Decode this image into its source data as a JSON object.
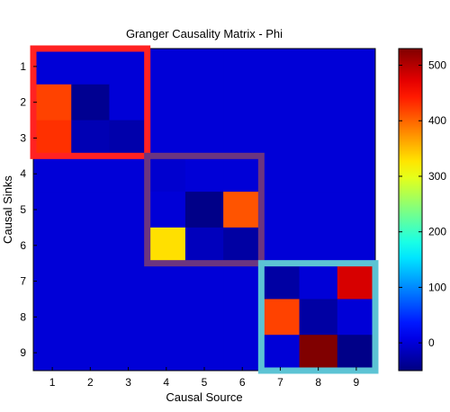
{
  "chart_data": {
    "type": "heatmap",
    "title": "Granger Causality Matrix - Phi",
    "xlabel": "Causal Source",
    "ylabel": "Causal Sinks",
    "x_categories": [
      "1",
      "2",
      "3",
      "4",
      "5",
      "6",
      "7",
      "8",
      "9"
    ],
    "y_categories": [
      "1",
      "2",
      "3",
      "4",
      "5",
      "6",
      "7",
      "8",
      "9"
    ],
    "values": [
      [
        0,
        0,
        0,
        0,
        0,
        0,
        0,
        0,
        0
      ],
      [
        420,
        -40,
        0,
        0,
        0,
        0,
        0,
        0,
        0
      ],
      [
        430,
        -20,
        -25,
        0,
        0,
        0,
        0,
        0,
        0
      ],
      [
        0,
        0,
        0,
        -5,
        0,
        0,
        0,
        0,
        0
      ],
      [
        0,
        0,
        0,
        0,
        -45,
        410,
        0,
        0,
        0
      ],
      [
        0,
        0,
        0,
        330,
        -15,
        -30,
        0,
        0,
        0
      ],
      [
        0,
        0,
        0,
        0,
        0,
        0,
        -30,
        0,
        480
      ],
      [
        0,
        0,
        0,
        0,
        0,
        0,
        420,
        -30,
        0
      ],
      [
        0,
        0,
        0,
        0,
        0,
        0,
        0,
        530,
        -45
      ]
    ],
    "colorbar": {
      "min": -50,
      "max": 530,
      "ticks": [
        0,
        100,
        200,
        300,
        400,
        500
      ],
      "colormap": "jet"
    },
    "highlight_blocks": [
      {
        "rows": [
          1,
          3
        ],
        "cols": [
          1,
          3
        ],
        "color": "#ff2222"
      },
      {
        "rows": [
          4,
          6
        ],
        "cols": [
          4,
          6
        ],
        "color": "#6b3580"
      },
      {
        "rows": [
          7,
          9
        ],
        "cols": [
          7,
          9
        ],
        "color": "#5cc3d4"
      }
    ]
  }
}
